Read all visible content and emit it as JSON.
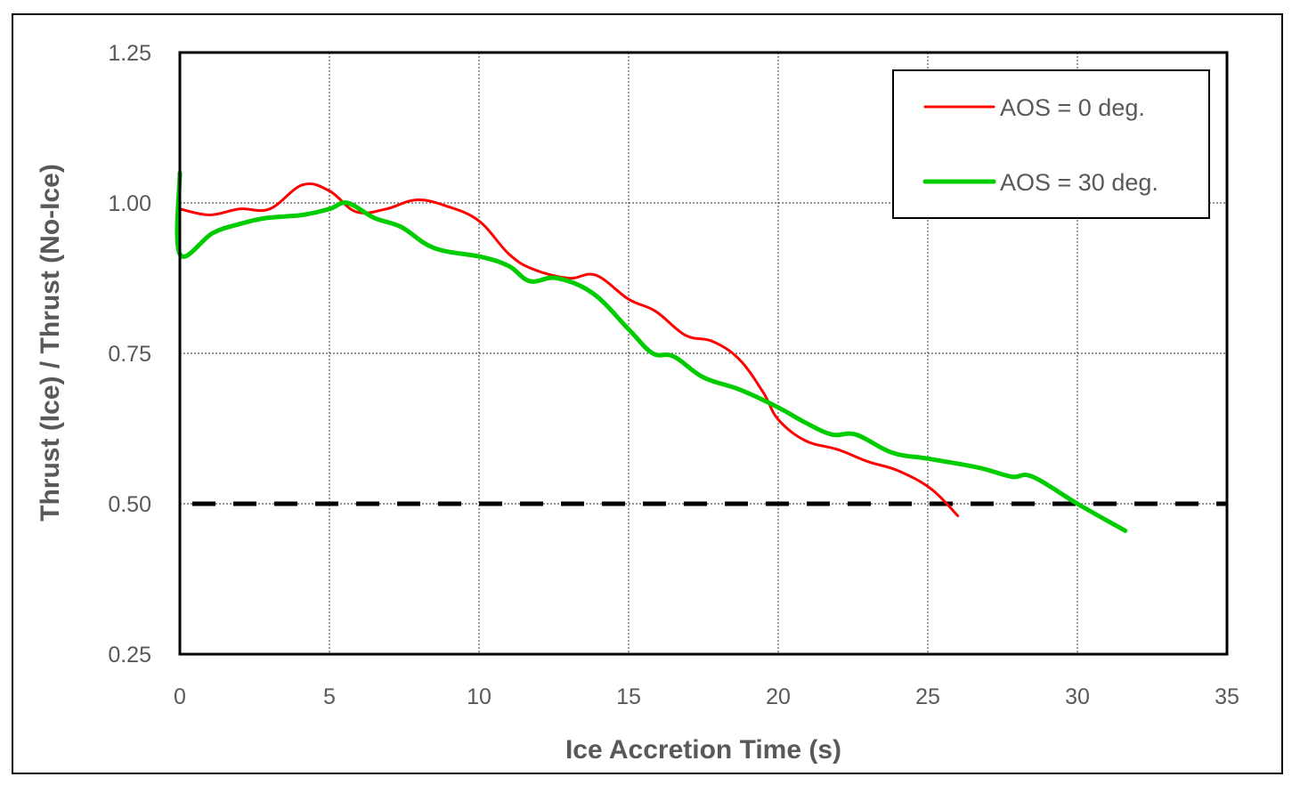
{
  "chart_data": {
    "type": "line",
    "title": "",
    "xlabel": "Ice Accretion Time (s)",
    "ylabel": "Thrust (Ice) / Thrust (No-Ice)",
    "xlim": [
      0,
      35
    ],
    "ylim": [
      0.25,
      1.25
    ],
    "x_ticks": [
      "0",
      "5",
      "10",
      "15",
      "20",
      "25",
      "30",
      "35"
    ],
    "y_ticks": [
      "1.25",
      "1.00",
      "0.75",
      "0.50",
      "0.25"
    ],
    "grid": true,
    "legend_position": "upper right",
    "reference_line": {
      "y": 0.5,
      "style": "dashed",
      "color": "#000000"
    },
    "series": [
      {
        "name": "AOS = 0 deg.",
        "color": "#FF0000",
        "x": [
          0,
          1,
          2,
          3,
          4.1,
          5,
          5.9,
          6.9,
          7.9,
          8.9,
          10,
          11,
          11.8,
          13,
          13.9,
          15,
          15.9,
          16.9,
          17.8,
          18.7,
          19.5,
          20,
          20.9,
          22,
          23,
          24,
          25.1,
          26
        ],
        "values": [
          0.99,
          0.98,
          0.99,
          0.99,
          1.03,
          1.02,
          0.985,
          0.99,
          1.005,
          0.995,
          0.97,
          0.915,
          0.89,
          0.875,
          0.88,
          0.84,
          0.82,
          0.78,
          0.77,
          0.74,
          0.685,
          0.64,
          0.605,
          0.59,
          0.57,
          0.555,
          0.525,
          0.48
        ]
      },
      {
        "name": "AOS = 30 deg.",
        "color": "#00CC00",
        "x": [
          0,
          0,
          1.1,
          2,
          2.9,
          4.1,
          5,
          5.6,
          6.5,
          7.4,
          8.5,
          10.1,
          11,
          11.7,
          12.6,
          13.8,
          15,
          15.8,
          16.5,
          17.5,
          18.7,
          20,
          20.9,
          21.8,
          22.6,
          23.8,
          25,
          26.7,
          27.8,
          28.5,
          30,
          31.6
        ],
        "values": [
          1.05,
          0.915,
          0.95,
          0.965,
          0.975,
          0.98,
          0.99,
          1.0,
          0.975,
          0.96,
          0.925,
          0.91,
          0.895,
          0.87,
          0.875,
          0.85,
          0.79,
          0.75,
          0.745,
          0.71,
          0.69,
          0.66,
          0.635,
          0.615,
          0.615,
          0.585,
          0.575,
          0.56,
          0.545,
          0.545,
          0.5,
          0.455
        ]
      }
    ]
  }
}
